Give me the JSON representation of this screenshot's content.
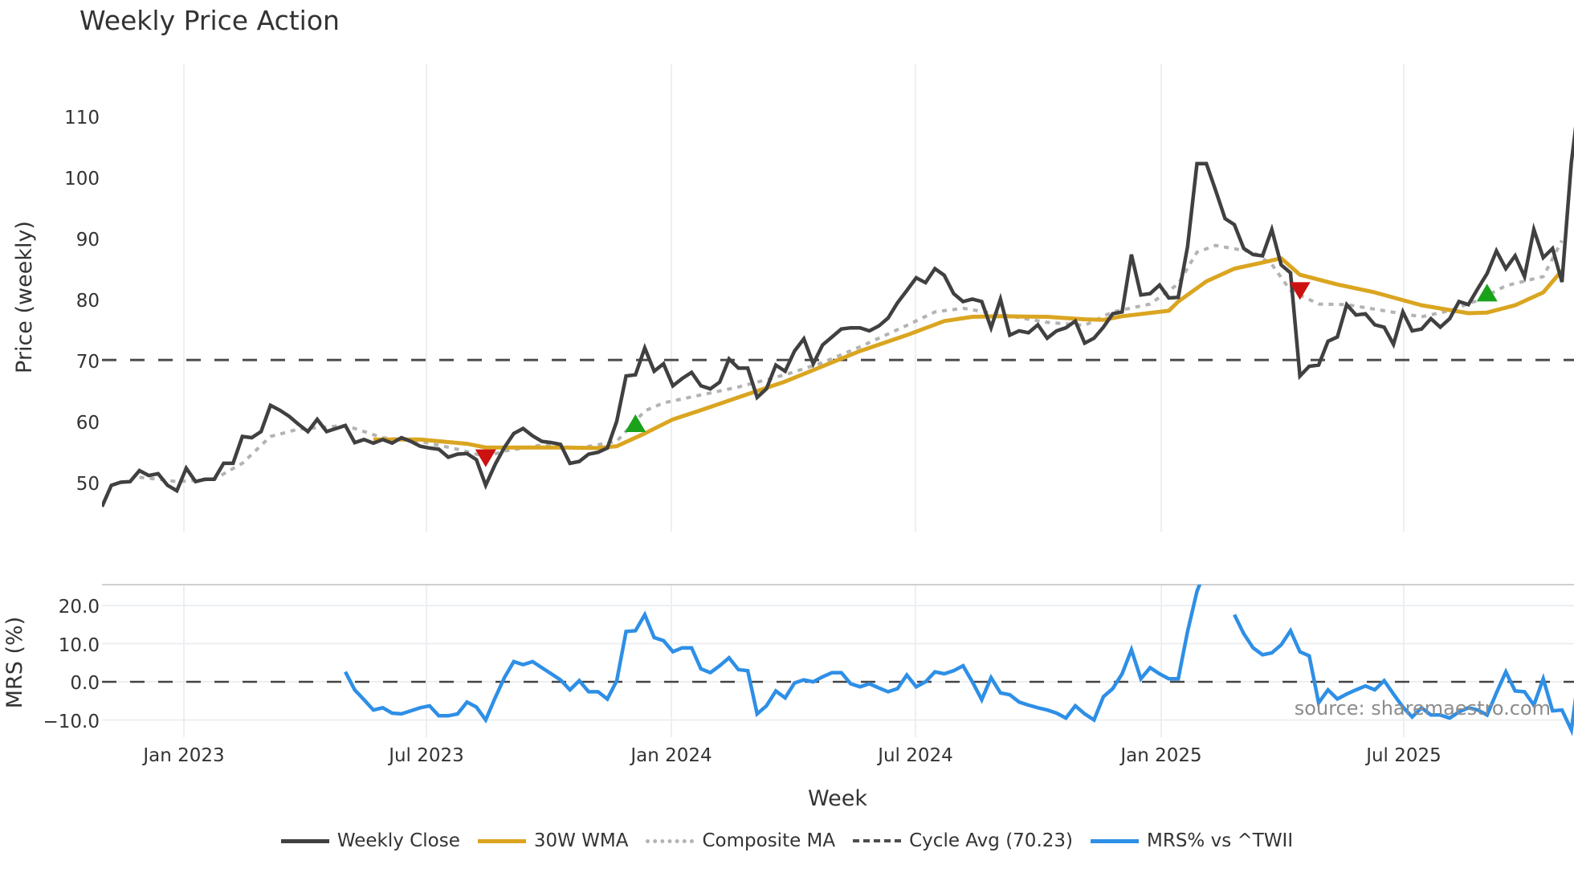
{
  "chart_data": {
    "type": "line",
    "title": "Weekly Price Action",
    "xlabel": "Week",
    "panels": [
      {
        "name": "price",
        "ylabel": "Price (weekly)",
        "ylim": [
          42.4,
          118.7
        ],
        "yticks": [
          50,
          60,
          70,
          80,
          90,
          100,
          110
        ]
      },
      {
        "name": "mrs",
        "ylabel": "MRS (%)",
        "ylim": [
          -13.8,
          25.7
        ],
        "yticks": [
          20.0,
          10.0,
          0.0,
          -10.0
        ]
      }
    ],
    "x_range": [
      "2022-11-04",
      "2025-10-24"
    ],
    "x_ticks": [
      "Jan 2023",
      "Jul 2023",
      "Jan 2024",
      "Jul 2024",
      "Jan 2025",
      "Jul 2025"
    ],
    "series": [
      {
        "name": "Weekly Close",
        "color": "#404040",
        "panel": "price",
        "values": [
          46.2,
          49.7,
          50.2,
          50.3,
          52.1,
          51.3,
          51.6,
          49.7,
          48.8,
          52.5,
          50.3,
          50.7,
          50.7,
          53.3,
          53.3,
          57.7,
          57.5,
          58.5,
          62.8,
          62.0,
          61.0,
          59.7,
          58.5,
          60.5,
          58.5,
          59.0,
          59.5,
          56.7,
          57.2,
          56.6,
          57.2,
          56.6,
          57.5,
          56.9,
          56.1,
          55.8,
          55.6,
          54.3,
          54.8,
          54.9,
          53.9,
          49.7,
          53.1,
          55.9,
          58.2,
          59.0,
          57.8,
          56.9,
          56.7,
          56.4,
          53.3,
          53.6,
          54.8,
          55.1,
          55.8,
          60.2,
          67.6,
          67.8,
          72.2,
          68.4,
          69.6,
          66.0,
          67.2,
          68.2,
          66.0,
          65.5,
          66.6,
          70.4,
          68.9,
          68.9,
          64.1,
          65.5,
          69.4,
          68.4,
          71.7,
          73.7,
          69.6,
          72.7,
          74.0,
          75.3,
          75.5,
          75.5,
          75.0,
          75.8,
          77.1,
          79.6,
          81.6,
          83.7,
          82.9,
          85.2,
          84.1,
          81.1,
          79.8,
          80.2,
          79.8,
          75.5,
          80.2,
          74.3,
          75.0,
          74.7,
          76.0,
          73.8,
          75.0,
          75.5,
          76.6,
          73.0,
          73.8,
          75.6,
          77.8,
          78.1,
          87.5,
          80.9,
          81.1,
          82.5,
          80.4,
          80.5,
          88.8,
          102.4,
          102.4,
          98.0,
          93.4,
          92.4,
          88.5,
          87.5,
          87.3,
          91.6,
          85.8,
          84.5,
          67.6,
          69.2,
          69.4,
          73.3,
          74.0,
          79.3,
          77.6,
          77.8,
          76.0,
          75.6,
          72.8,
          78.1,
          75.0,
          75.3,
          77.0,
          75.6,
          77.0,
          79.8,
          79.3,
          81.9,
          84.4,
          88.1,
          85.2,
          87.3,
          83.9,
          91.6,
          87.0,
          88.5,
          83.0,
          102.6,
          114.9
        ]
      },
      {
        "name": "30W WMA",
        "color": "#DAA520",
        "panel": "price",
        "points": [
          [
            29,
            57.2
          ],
          [
            34,
            57.2
          ],
          [
            39,
            56.5
          ],
          [
            41,
            55.9
          ],
          [
            44,
            55.9
          ],
          [
            49,
            55.9
          ],
          [
            53,
            55.8
          ],
          [
            55,
            56.1
          ],
          [
            58,
            58.2
          ],
          [
            61,
            60.5
          ],
          [
            64,
            62.0
          ],
          [
            68,
            64.1
          ],
          [
            73,
            66.7
          ],
          [
            77,
            69.2
          ],
          [
            81,
            71.7
          ],
          [
            86,
            74.3
          ],
          [
            90,
            76.6
          ],
          [
            93,
            77.3
          ],
          [
            96,
            77.4
          ],
          [
            101,
            77.3
          ],
          [
            105,
            76.9
          ],
          [
            107,
            76.8
          ],
          [
            109,
            77.4
          ],
          [
            114,
            78.3
          ],
          [
            115,
            79.8
          ],
          [
            118,
            83.1
          ],
          [
            121,
            85.2
          ],
          [
            124,
            86.2
          ],
          [
            126,
            86.9
          ],
          [
            128,
            84.2
          ],
          [
            132,
            82.6
          ],
          [
            136,
            81.3
          ],
          [
            141,
            79.2
          ],
          [
            146,
            77.9
          ],
          [
            148,
            78.0
          ],
          [
            151,
            79.2
          ],
          [
            154,
            81.3
          ],
          [
            156,
            84.9
          ]
        ]
      },
      {
        "name": "Composite MA",
        "color": "#b3b3b3",
        "panel": "price",
        "points": [
          [
            4,
            51.0
          ],
          [
            6,
            50.7
          ],
          [
            8,
            50.3
          ],
          [
            12,
            50.7
          ],
          [
            15,
            53.3
          ],
          [
            18,
            57.7
          ],
          [
            21,
            58.9
          ],
          [
            26,
            59.5
          ],
          [
            30,
            57.5
          ],
          [
            34,
            56.9
          ],
          [
            38,
            55.6
          ],
          [
            41,
            54.4
          ],
          [
            43,
            55.3
          ],
          [
            47,
            56.3
          ],
          [
            51,
            55.8
          ],
          [
            55,
            56.9
          ],
          [
            58,
            61.9
          ],
          [
            60,
            63.2
          ],
          [
            64,
            64.5
          ],
          [
            68,
            65.8
          ],
          [
            73,
            67.8
          ],
          [
            77,
            69.8
          ],
          [
            81,
            72.4
          ],
          [
            86,
            75.9
          ],
          [
            89,
            78.1
          ],
          [
            92,
            78.7
          ],
          [
            96,
            77.7
          ],
          [
            101,
            76.4
          ],
          [
            105,
            75.9
          ],
          [
            108,
            78.1
          ],
          [
            112,
            79.4
          ],
          [
            115,
            82.7
          ],
          [
            117,
            87.9
          ],
          [
            119,
            89.0
          ],
          [
            123,
            87.9
          ],
          [
            125,
            85.9
          ],
          [
            127,
            81.6
          ],
          [
            130,
            79.4
          ],
          [
            133,
            79.3
          ],
          [
            137,
            78.3
          ],
          [
            141,
            77.3
          ],
          [
            144,
            78.3
          ],
          [
            147,
            80.0
          ],
          [
            150,
            82.4
          ],
          [
            154,
            83.9
          ],
          [
            156,
            89.8
          ]
        ]
      },
      {
        "name": "Cycle Avg (70.23)",
        "color": "#4d4d4d",
        "panel": "price",
        "value": 70.23
      },
      {
        "name": "MRS% vs ^TWII",
        "color": "#2E8FE6",
        "panel": "mrs",
        "start_index": 26,
        "values": [
          2.6,
          -2.1,
          -4.7,
          -7.4,
          -6.8,
          -8.2,
          -8.4,
          -7.6,
          -6.8,
          -6.3,
          -8.9,
          -8.9,
          -8.4,
          -5.3,
          -6.6,
          -10.0,
          -4.2,
          1.1,
          5.3,
          4.5,
          5.3,
          3.7,
          2.1,
          0.5,
          -2.1,
          0.3,
          -2.6,
          -2.6,
          -4.5,
          0.3,
          13.2,
          13.4,
          17.6,
          11.6,
          10.8,
          7.9,
          8.9,
          8.9,
          3.4,
          2.4,
          4.2,
          6.3,
          3.2,
          2.9,
          -8.4,
          -6.3,
          -2.4,
          -4.2,
          -0.3,
          0.5,
          0.0,
          1.3,
          2.4,
          2.4,
          -0.5,
          -1.3,
          -0.5,
          -1.6,
          -2.6,
          -1.8,
          1.8,
          -1.3,
          0.0,
          2.6,
          2.1,
          2.9,
          4.2,
          0.0,
          -4.7,
          1.1,
          -2.9,
          -3.4,
          -5.3,
          -6.1,
          -6.8,
          -7.4,
          -8.2,
          -9.5,
          -6.3,
          -8.4,
          -10.0,
          -3.9,
          -1.8,
          2.1,
          8.4,
          0.8,
          3.7,
          2.1,
          0.8,
          0.8,
          13.2,
          23.7,
          30.0,
          null,
          null,
          17.6,
          12.6,
          8.9,
          7.1,
          7.6,
          9.7,
          13.4,
          7.9,
          6.8,
          -5.5,
          -2.1,
          -4.5,
          -3.2,
          -2.1,
          -1.1,
          -2.1,
          0.3,
          -3.2,
          -6.6,
          -9.2,
          -6.8,
          -8.7,
          -8.7,
          -9.5,
          -7.9,
          -6.8,
          -7.4,
          -8.7,
          -2.9,
          2.6,
          -2.4,
          -2.6,
          -6.1,
          0.8,
          -7.6,
          -7.4,
          -12.6,
          5.5,
          16.6
        ]
      },
      {
        "name": "MRS zero line",
        "color": "#4d4d4d",
        "panel": "mrs",
        "value": 0.0
      }
    ],
    "markers": [
      {
        "type": "sell",
        "shape": "triangle-down",
        "color": "#CC1111",
        "index": 41,
        "value": 54.3
      },
      {
        "type": "buy",
        "shape": "triangle-up",
        "color": "#1AA31A",
        "index": 57,
        "value": 59.7
      },
      {
        "type": "sell",
        "shape": "triangle-down",
        "color": "#CC1111",
        "index": 128,
        "value": 81.7
      },
      {
        "type": "buy",
        "shape": "triangle-up",
        "color": "#1AA31A",
        "index": 148,
        "value": 81.1
      }
    ],
    "annotations": [
      "source: sharemaestro.com"
    ],
    "legend_position": "bottom-center",
    "grid": {
      "vertical": true,
      "horizontal_mrs": true
    }
  },
  "header": {
    "title": "Weekly Price Action"
  },
  "axes": {
    "price_ylabel": "Price (weekly)",
    "mrs_ylabel": "MRS (%)",
    "xlabel": "Week",
    "price_ticks": [
      "110",
      "100",
      "90",
      "80",
      "70",
      "60",
      "50"
    ],
    "mrs_ticks": [
      "20.0",
      "10.0",
      "0.0",
      "−10.0"
    ],
    "x_ticks": [
      "Jan 2023",
      "Jul 2023",
      "Jan 2024",
      "Jul 2024",
      "Jan 2025",
      "Jul 2025"
    ]
  },
  "source": "source: sharemaestro.com",
  "legend": {
    "items": [
      {
        "label": "Weekly Close",
        "color": "#404040"
      },
      {
        "label": "30W WMA",
        "color": "#DAA520"
      },
      {
        "label": "Composite MA",
        "color": "#b3b3b3"
      },
      {
        "label": "Cycle Avg (70.23)",
        "color": "#4d4d4d"
      },
      {
        "label": "MRS% vs ^TWII",
        "color": "#2E8FE6"
      }
    ]
  }
}
